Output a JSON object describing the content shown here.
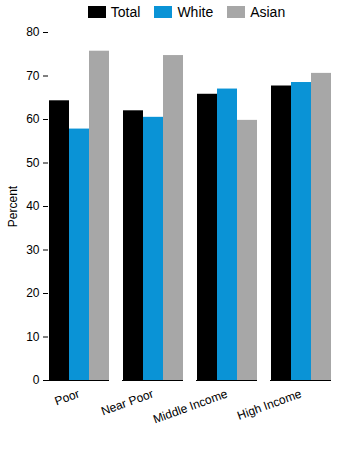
{
  "chart_data": {
    "type": "bar",
    "categories": [
      "Poor",
      "Near Poor",
      "Middle Income",
      "High Income"
    ],
    "series": [
      {
        "name": "Total",
        "color": "#000000",
        "values": [
          64.3,
          62.0,
          65.8,
          67.7
        ]
      },
      {
        "name": "White",
        "color": "#0a93d6",
        "values": [
          57.8,
          60.5,
          67.0,
          68.5
        ]
      },
      {
        "name": "Asian",
        "color": "#a7a7a7",
        "values": [
          75.7,
          74.7,
          59.8,
          70.6
        ]
      }
    ],
    "y_label": "Percent",
    "ylim": [
      0,
      80
    ],
    "yticks": [
      0,
      10,
      20,
      30,
      40,
      50,
      60,
      70,
      80
    ],
    "grid": false,
    "legend": "top"
  }
}
